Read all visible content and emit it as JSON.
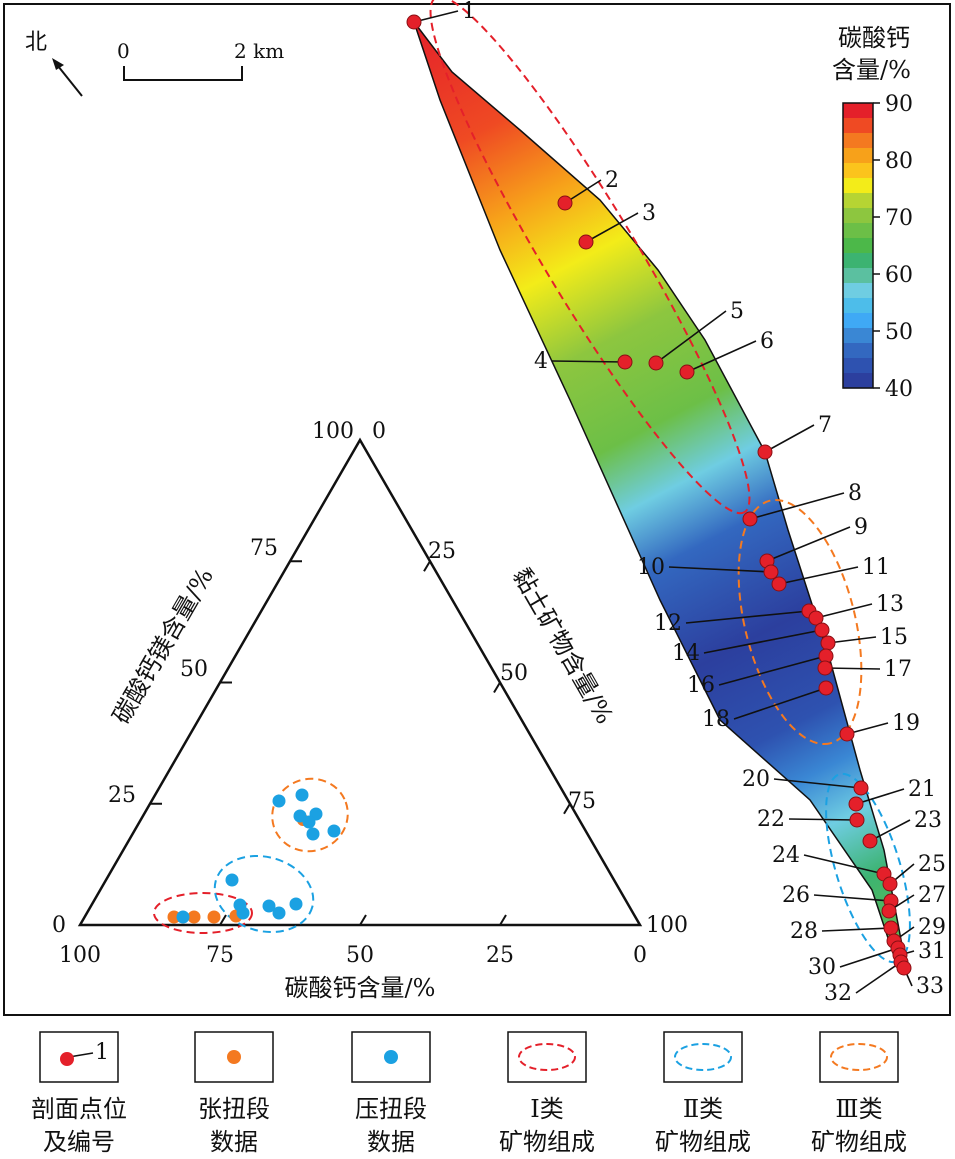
{
  "map": {
    "north_label": "北",
    "scale_left": "0",
    "scale_right": "2 km"
  },
  "colorbar": {
    "title_line1": "碳酸钙",
    "title_line2": "含量/%",
    "ticks": [
      "90",
      "80",
      "70",
      "60",
      "50",
      "40"
    ],
    "range": [
      40,
      90
    ],
    "colors": [
      "#E4202A",
      "#EF4A23",
      "#F47920",
      "#F7A11A",
      "#FBC41C",
      "#F3EC19",
      "#B6D433",
      "#8DC63F",
      "#6CBF47",
      "#4CB849",
      "#3CB371",
      "#5BC0A0",
      "#6FCDE2",
      "#4DBDEA",
      "#3FA9F5",
      "#3A87D4",
      "#3368C0",
      "#2E52B0",
      "#2C3F9E"
    ]
  },
  "profile_points": [
    "1",
    "2",
    "3",
    "4",
    "5",
    "6",
    "7",
    "8",
    "9",
    "10",
    "11",
    "12",
    "13",
    "14",
    "15",
    "16",
    "17",
    "18",
    "19",
    "20",
    "21",
    "22",
    "23",
    "24",
    "25",
    "26",
    "27",
    "28",
    "29",
    "30",
    "31",
    "32",
    "33"
  ],
  "ternary": {
    "left_axis_title": "碳酸钙镁含量/%",
    "right_axis_title": "黏土矿物含量/%",
    "bottom_axis_title": "碳酸钙含量/%",
    "left_ticks": [
      "0",
      "25",
      "50",
      "75",
      "100"
    ],
    "right_ticks": [
      "0",
      "25",
      "50",
      "75",
      "100"
    ],
    "bottom_ticks": [
      "100",
      "75",
      "50",
      "25",
      "0"
    ]
  },
  "legend": [
    {
      "label_line1": "剖面点位",
      "label_line2": "及编号",
      "sample_text": "1",
      "kind": "profile-point"
    },
    {
      "label_line1": "张扭段",
      "label_line2": "数据",
      "kind": "orange-dot",
      "color": "#F47920"
    },
    {
      "label_line1": "压扭段",
      "label_line2": "数据",
      "kind": "blue-dot",
      "color": "#1BA1E2"
    },
    {
      "label_line1": "Ⅰ类",
      "label_line2": "矿物组成",
      "kind": "red-ellipse",
      "color": "#E4202A"
    },
    {
      "label_line1": "Ⅱ类",
      "label_line2": "矿物组成",
      "kind": "blue-ellipse",
      "color": "#1BA1E2"
    },
    {
      "label_line1": "Ⅲ类",
      "label_line2": "矿物组成",
      "kind": "orange-ellipse",
      "color": "#F47920"
    }
  ]
}
